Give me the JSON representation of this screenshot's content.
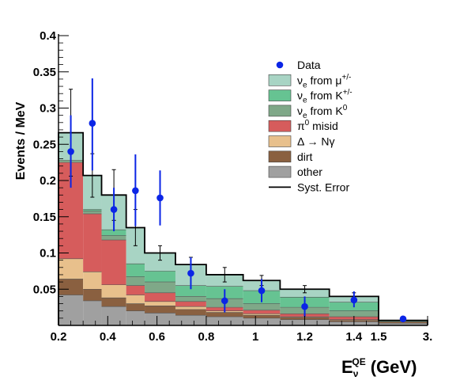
{
  "chart_data": {
    "type": "bar",
    "subtype": "stacked-histogram",
    "ylabel": "Events / MeV",
    "xlabel": {
      "base": "E",
      "sub": "ν",
      "sup": "QE",
      "unit": "(GeV)"
    },
    "ylim": [
      0,
      0.4
    ],
    "y_ticks": [
      0.05,
      0.1,
      0.15,
      0.2,
      0.25,
      0.3,
      0.35,
      0.4
    ],
    "y_tick_labels": [
      "0.05",
      "0.1",
      "0.15",
      "0.2",
      "0.25",
      "0.3",
      "0.35",
      "0.4"
    ],
    "x_tick_values": [
      0.2,
      0.4,
      0.6,
      0.8,
      1.0,
      1.2,
      1.4,
      1.5,
      3.0
    ],
    "x_tick_labels": [
      "0.2",
      "0.4",
      "0.6",
      "0.8",
      "1",
      "1.2",
      "1.4",
      "1.5",
      "3."
    ],
    "x_scale": "piecewise-linear: 0.2–1.5 linear, 1.5–3.0 compressed",
    "bin_edges": [
      0.2,
      0.3,
      0.375,
      0.475,
      0.55,
      0.675,
      0.8,
      0.95,
      1.1,
      1.3,
      1.5,
      3.0
    ],
    "series": [
      {
        "name": "other",
        "color": "#a0a0a0",
        "values": [
          0.042,
          0.034,
          0.026,
          0.02,
          0.017,
          0.014,
          0.012,
          0.01,
          0.008,
          0.005,
          0.003
        ]
      },
      {
        "name": "dirt",
        "color": "#8a6040",
        "values": [
          0.022,
          0.016,
          0.012,
          0.01,
          0.01,
          0.008,
          0.006,
          0.004,
          0.003,
          0.002,
          0.002
        ]
      },
      {
        "name": "Δ → Nγ",
        "color": "#e8c08c",
        "values": [
          0.028,
          0.024,
          0.018,
          0.012,
          0.006,
          0.004,
          0.002,
          0.002,
          0.001,
          0.001,
          0.0
        ]
      },
      {
        "name": "π0 misid",
        "color": "#d65c5c",
        "values": [
          0.133,
          0.08,
          0.062,
          0.013,
          0.012,
          0.007,
          0.005,
          0.005,
          0.004,
          0.004,
          0.0
        ]
      },
      {
        "name": "νe from K0",
        "color": "#7fa888",
        "values": [
          0.003,
          0.004,
          0.006,
          0.012,
          0.015,
          0.007,
          0.012,
          0.009,
          0.009,
          0.008,
          0.0
        ]
      },
      {
        "name": "νe from K+/-",
        "color": "#66c392",
        "values": [
          0.0,
          0.002,
          0.008,
          0.018,
          0.015,
          0.015,
          0.017,
          0.018,
          0.014,
          0.012,
          0.001
        ]
      },
      {
        "name": "νe from μ+/-",
        "color": "#a8d4c4",
        "values": [
          0.038,
          0.047,
          0.048,
          0.05,
          0.025,
          0.029,
          0.016,
          0.014,
          0.011,
          0.008,
          0.001
        ]
      }
    ],
    "syst_error": [
      0.06,
      0.03,
      0.035,
      0.025,
      0.01,
      0.01,
      0.01,
      0.007,
      0.005,
      0.005,
      0.001
    ],
    "data_points": {
      "name": "Data",
      "color": "#0b25e6",
      "x": [
        0.25,
        0.3375,
        0.425,
        0.5125,
        0.6125,
        0.7375,
        0.875,
        1.025,
        1.2,
        1.4,
        2.25
      ],
      "y": [
        0.24,
        0.279,
        0.16,
        0.186,
        0.176,
        0.072,
        0.034,
        0.048,
        0.026,
        0.035,
        0.009
      ],
      "err_low": [
        0.05,
        0.065,
        0.03,
        0.049,
        0.038,
        0.022,
        0.016,
        0.016,
        0.014,
        0.01,
        0.004
      ],
      "err_high": [
        0.05,
        0.062,
        0.03,
        0.05,
        0.038,
        0.022,
        0.016,
        0.016,
        0.014,
        0.012,
        0.004
      ]
    },
    "legend": {
      "position": "top-right",
      "entries": [
        {
          "kind": "marker",
          "label": "Data",
          "color": "#0b25e6"
        },
        {
          "kind": "box",
          "base": "ν",
          "sub": "e",
          "mid": " from μ",
          "sup": "+/-",
          "color": "#a8d4c4"
        },
        {
          "kind": "box",
          "base": "ν",
          "sub": "e",
          "mid": " from K",
          "sup": "+/-",
          "color": "#66c392"
        },
        {
          "kind": "box",
          "base": "ν",
          "sub": "e",
          "mid": " from K",
          "sup": "0",
          "color": "#7fa888"
        },
        {
          "kind": "box",
          "base": "π",
          "sup": "0",
          "mid": " misid",
          "color": "#d65c5c"
        },
        {
          "kind": "box",
          "label": "Δ → Nγ",
          "color": "#e8c08c"
        },
        {
          "kind": "box",
          "label": "dirt",
          "color": "#8a6040"
        },
        {
          "kind": "box",
          "label": "other",
          "color": "#a0a0a0"
        },
        {
          "kind": "line",
          "label": "Syst. Error",
          "color": "#000000"
        }
      ]
    },
    "grid": false
  }
}
